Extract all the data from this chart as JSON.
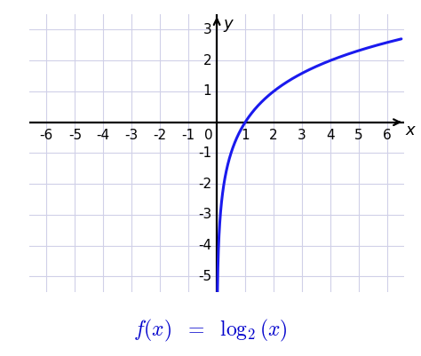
{
  "xlim": [
    -6.6,
    6.6
  ],
  "ylim": [
    -5.5,
    3.5
  ],
  "xticks": [
    -6,
    -5,
    -4,
    -3,
    -2,
    -1,
    0,
    1,
    2,
    3,
    4,
    5,
    6
  ],
  "yticks": [
    -5,
    -4,
    -3,
    -2,
    -1,
    1,
    2,
    3
  ],
  "xlabel": "x",
  "ylabel": "y",
  "curve_color": "#1a1aee",
  "curve_linewidth": 2.2,
  "background_color": "#ffffff",
  "grid_color": "#d0d0e8",
  "axis_color": "#000000",
  "label_color": "#0000cc",
  "x_plot_min": 0.022,
  "x_plot_max": 6.5,
  "figsize": [
    4.74,
    4.01
  ],
  "dpi": 100,
  "tick_fontsize": 11,
  "axis_label_fontsize": 13,
  "formula_fontsize": 17
}
